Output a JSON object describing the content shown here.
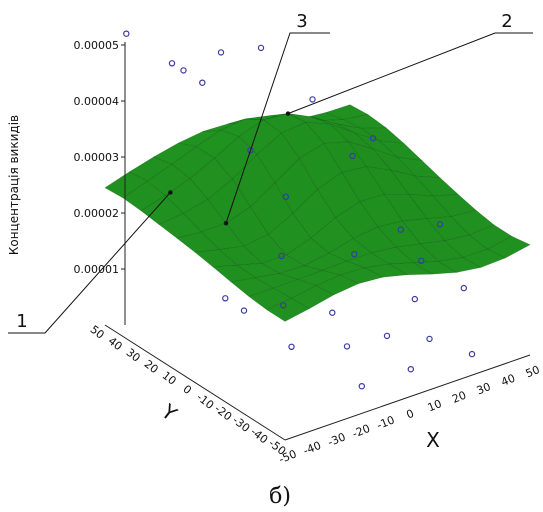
{
  "chart_data": {
    "type": "scatter",
    "subtype": "3d-surface-with-points",
    "caption": "б)",
    "zlabel": "Концентрація викидів",
    "xlabel": "X",
    "ylabel": "Y",
    "x_ticks": [
      "-50",
      "-40",
      "-30",
      "-20",
      "-10",
      "0",
      "10",
      "20",
      "30",
      "40",
      "50"
    ],
    "y_ticks": [
      "50",
      "40",
      "30",
      "20",
      "10",
      "0",
      "-10",
      "-20",
      "-30",
      "-40",
      "-50"
    ],
    "z_ticks": [
      "0.00001",
      "0.00002",
      "0.00003",
      "0.00004",
      "0.00005"
    ],
    "xlim": [
      -50,
      50
    ],
    "ylim": [
      -50,
      50
    ],
    "zlim": [
      0,
      5e-05
    ],
    "callouts": [
      "1",
      "2",
      "3"
    ],
    "surface_color": "#1f9a1f",
    "point_color": "#3a3aa0",
    "points": [
      {
        "x": -45,
        "y": 45,
        "z": 4.8e-05
      },
      {
        "x": -40,
        "y": 20,
        "z": 4.6e-05
      },
      {
        "x": -30,
        "y": 40,
        "z": 4.2e-05
      },
      {
        "x": -25,
        "y": 30,
        "z": 4e-05
      },
      {
        "x": -10,
        "y": 40,
        "z": 4.1e-05
      },
      {
        "x": 10,
        "y": 45,
        "z": 3.8e-05
      },
      {
        "x": -35,
        "y": -30,
        "z": 3.4e-05
      },
      {
        "x": -20,
        "y": 10,
        "z": 3.2e-05
      },
      {
        "x": 20,
        "y": 30,
        "z": 3.1e-05
      },
      {
        "x": 30,
        "y": 10,
        "z": 2.7e-05
      },
      {
        "x": -45,
        "y": -10,
        "z": 1.5e-05
      },
      {
        "x": -40,
        "y": -40,
        "z": 1.2e-05
      },
      {
        "x": -30,
        "y": 0,
        "z": 9e-06
      },
      {
        "x": -10,
        "y": -30,
        "z": 6e-06
      },
      {
        "x": 5,
        "y": -45,
        "z": 3e-06
      },
      {
        "x": 20,
        "y": -35,
        "z": 4e-06
      },
      {
        "x": 35,
        "y": -10,
        "z": 1e-05
      },
      {
        "x": 45,
        "y": 15,
        "z": 9e-06
      },
      {
        "x": 45,
        "y": -20,
        "z": 6e-06
      },
      {
        "x": 30,
        "y": -45,
        "z": 2e-06
      },
      {
        "x": 15,
        "y": 0,
        "z": 1.2e-05
      },
      {
        "x": -15,
        "y": -45,
        "z": 3e-06
      },
      {
        "x": 40,
        "y": 35,
        "z": 1.8e-05
      },
      {
        "x": -5,
        "y": -15,
        "z": 8e-06
      },
      {
        "x": 0,
        "y": 20,
        "z": 1e-05
      },
      {
        "x": 25,
        "y": -20,
        "z": 7e-06
      },
      {
        "x": -25,
        "y": -15,
        "z": 1.2e-05
      },
      {
        "x": 10,
        "y": -25,
        "z": 4e-06
      },
      {
        "x": 50,
        "y": 0,
        "z": 1.2e-05
      }
    ]
  }
}
